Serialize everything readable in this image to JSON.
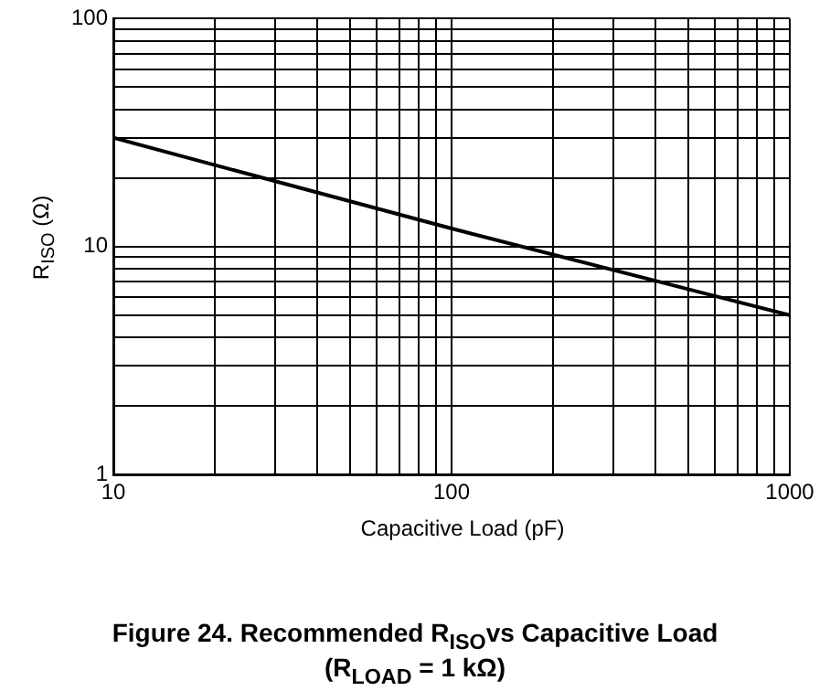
{
  "chart_data": {
    "type": "line",
    "title": "Figure 24. Recommended R$_{ISO}$vs Capacitive Load",
    "subtitle": "(R$_{LOAD}$ = 1 kΩ)",
    "xlabel": "Capacitive Load (pF)",
    "ylabel": "R$_{ISO}$ (Ω)",
    "x": [
      10,
      100,
      1000
    ],
    "series": [
      {
        "color": "#000000",
        "values": [
          30,
          12,
          5
        ]
      }
    ],
    "log": "xy",
    "grid": true,
    "legend": false,
    "marker": "none",
    "line_style": "solid",
    "xlim": [
      10,
      1000
    ],
    "ylim": [
      1,
      100
    ],
    "xticks": [
      10,
      {
        "value": 20,
        "label": null
      },
      {
        "value": 30,
        "label": null
      },
      {
        "value": 40,
        "label": null
      },
      {
        "value": 50,
        "label": null
      },
      {
        "value": 60,
        "label": null
      },
      {
        "value": 70,
        "label": null
      },
      {
        "value": 80,
        "label": null
      },
      {
        "value": 90,
        "label": null
      },
      100,
      {
        "value": 200,
        "label": null
      },
      {
        "value": 300,
        "label": null
      },
      {
        "value": 400,
        "label": null
      },
      {
        "value": 500,
        "label": null
      },
      {
        "value": 600,
        "label": null
      },
      {
        "value": 700,
        "label": null
      },
      {
        "value": 800,
        "label": null
      },
      {
        "value": 900,
        "label": null
      },
      1000
    ],
    "yticks": [
      1,
      {
        "value": 2,
        "label": null
      },
      {
        "value": 3,
        "label": null
      },
      {
        "value": 4,
        "label": null
      },
      {
        "value": 5,
        "label": null
      },
      {
        "value": 6,
        "label": null
      },
      {
        "value": 7,
        "label": null
      },
      {
        "value": 8,
        "label": null
      },
      {
        "value": 9,
        "label": null
      },
      10,
      {
        "value": 20,
        "label": null
      },
      {
        "value": 30,
        "label": null
      },
      {
        "value": 40,
        "label": null
      },
      {
        "value": 50,
        "label": null
      },
      {
        "value": 60,
        "label": null
      },
      {
        "value": 70,
        "label": null
      },
      {
        "value": 80,
        "label": null
      },
      {
        "value": 90,
        "label": null
      },
      100
    ]
  }
}
